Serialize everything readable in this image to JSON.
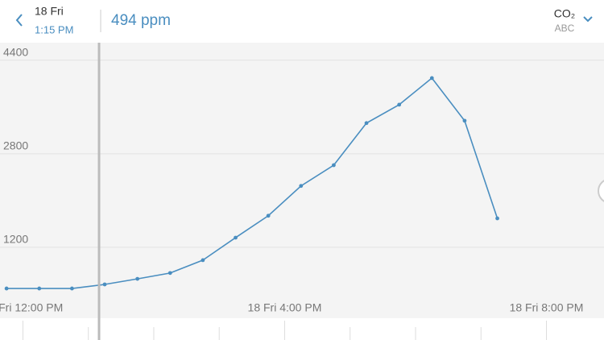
{
  "header": {
    "date": "18 Fri",
    "time": "1:15 PM",
    "reading": "494 ppm",
    "sensor": "CO₂",
    "device": "ABC"
  },
  "chart_data": {
    "type": "line",
    "x": [
      11.75,
      12.25,
      12.75,
      13.25,
      13.75,
      14.25,
      14.75,
      15.25,
      15.75,
      16.25,
      16.75,
      17.25,
      17.75,
      18.25,
      18.75,
      19.25
    ],
    "series": [
      {
        "name": "CO₂",
        "color": "#4a8ec0",
        "values": [
          495,
          495,
          495,
          565,
          660,
          760,
          980,
          1365,
          1740,
          2250,
          2605,
          3325,
          3640,
          4095,
          3365,
          1695
        ]
      }
    ],
    "xlim": [
      11.65,
      20.88
    ],
    "xticks": [
      {
        "value": 12,
        "label": "18 Fri 12:00 PM"
      },
      {
        "value": 16,
        "label": "18 Fri 4:00 PM"
      },
      {
        "value": 20,
        "label": "18 Fri 8:00 PM"
      }
    ],
    "minor_xticks": [
      13,
      14,
      15,
      17,
      18,
      19
    ],
    "ylim": [
      0,
      4700
    ],
    "yticks": [
      1200,
      2800,
      4400
    ],
    "grid": true
  }
}
